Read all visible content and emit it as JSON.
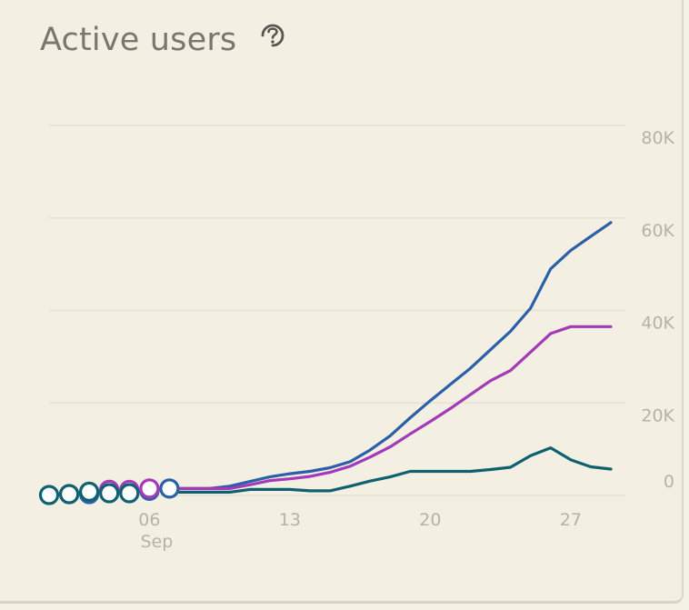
{
  "card": {
    "title": "Active users"
  },
  "icons": {
    "help": "help-icon"
  },
  "colors": {
    "background": "#f3f0e3",
    "grid": "#e8e3d3",
    "text": "#7a7570",
    "tick": "#b8b1a6"
  },
  "chart_data": {
    "type": "line",
    "title": "Active users",
    "xlabel": "",
    "ylabel": "",
    "x_ticks": [
      {
        "day": 6,
        "label": "06",
        "sublabel": "Sep"
      },
      {
        "day": 13,
        "label": "13",
        "sublabel": ""
      },
      {
        "day": 20,
        "label": "20",
        "sublabel": ""
      },
      {
        "day": 27,
        "label": "27",
        "sublabel": ""
      }
    ],
    "y_ticks": [
      {
        "value": 0,
        "label": "0"
      },
      {
        "value": 20000,
        "label": "20K"
      },
      {
        "value": 40000,
        "label": "40K"
      },
      {
        "value": 60000,
        "label": "60K"
      },
      {
        "value": 80000,
        "label": "80K"
      }
    ],
    "xlim": [
      1,
      29
    ],
    "ylim": [
      0,
      80000
    ],
    "grid": true,
    "series": [
      {
        "color": "#2b5fa8",
        "x": [
          7,
          8,
          9,
          10,
          11,
          12,
          13,
          14,
          15,
          16,
          17,
          18,
          19,
          20,
          21,
          22,
          23,
          24,
          25,
          26,
          27,
          28,
          29
        ],
        "values": [
          1500,
          1500,
          1500,
          2000,
          3000,
          4000,
          4700,
          5200,
          6000,
          7300,
          9800,
          12900,
          16800,
          20500,
          24000,
          27500,
          31500,
          35500,
          40500,
          49000,
          53000,
          56000,
          59000
        ],
        "markers_x": [
          2,
          3,
          4,
          5,
          6,
          7
        ],
        "markers_y": [
          300,
          300,
          1200,
          800,
          1000,
          1500
        ]
      },
      {
        "color": "#a43ab8",
        "x": [
          7,
          8,
          9,
          10,
          11,
          12,
          13,
          14,
          15,
          16,
          17,
          18,
          19,
          20,
          21,
          22,
          23,
          24,
          25,
          26,
          27,
          28,
          29
        ],
        "values": [
          1500,
          1500,
          1500,
          1500,
          2300,
          3200,
          3600,
          4100,
          5000,
          6300,
          8300,
          10500,
          13300,
          16000,
          18800,
          21800,
          24800,
          27000,
          31000,
          35000,
          36500,
          36500,
          36500
        ],
        "markers_x": [
          4,
          5,
          6
        ],
        "markers_y": [
          1200,
          1200,
          1500
        ]
      },
      {
        "color": "#0f6070",
        "x": [
          7,
          8,
          9,
          10,
          11,
          12,
          13,
          14,
          15,
          16,
          17,
          18,
          19,
          20,
          21,
          22,
          23,
          24,
          25,
          26,
          27,
          28,
          29
        ],
        "values": [
          700,
          700,
          700,
          700,
          1300,
          1300,
          1300,
          1000,
          1000,
          2000,
          3100,
          4000,
          5200,
          5200,
          5200,
          5200,
          5600,
          6100,
          8600,
          10300,
          7700,
          6200,
          5700
        ],
        "markers_x": [
          1,
          2,
          3,
          4,
          5
        ],
        "markers_y": [
          100,
          300,
          800,
          500,
          500
        ]
      }
    ]
  }
}
